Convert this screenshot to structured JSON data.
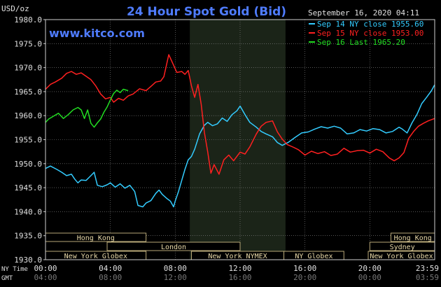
{
  "chart_data": {
    "type": "line",
    "title": "24 Hour Spot Gold (Bid)",
    "watermark": "www.kitco.com",
    "ylabel": "USD/oz",
    "timestamp": "September 16, 2020 04:11",
    "ylim": [
      1930,
      1980
    ],
    "yticks": [
      "1930.0",
      "1935.0",
      "1940.0",
      "1945.0",
      "1950.0",
      "1955.0",
      "1960.0",
      "1965.0",
      "1970.0",
      "1975.0",
      "1980.0"
    ],
    "x_axis_ny_label": "NY Time",
    "x_axis_gmt_label": "GMT",
    "xticks_ny": [
      "00:00",
      "04:00",
      "08:00",
      "12:00",
      "16:00",
      "20:00",
      "23:59"
    ],
    "xticks_gmt": [
      "04:00",
      "08:00",
      "12:00",
      "16:00",
      "20:00",
      "00:00",
      "03:59"
    ],
    "xticks_hours": [
      0,
      4,
      8,
      12,
      16,
      20,
      24
    ],
    "highlight_hours": [
      8.9,
      14.8
    ],
    "legend": [
      {
        "label": "Sep 14 NY close 1955.60",
        "color": "#33ccff"
      },
      {
        "label": "Sep 15 NY close 1953.00",
        "color": "#ff2020"
      },
      {
        "label": "Sep 16 Last 1965.20",
        "color": "#22dd22"
      }
    ],
    "sessions": [
      {
        "label": "Hong Kong",
        "start": 0,
        "end": 6.2,
        "row": 0
      },
      {
        "label": "Hong Kong",
        "start": 21.3,
        "end": 24,
        "row": 0
      },
      {
        "label": "London",
        "start": 3.8,
        "end": 12.0,
        "row": 1
      },
      {
        "label": "Sydney",
        "start": 20.0,
        "end": 24,
        "row": 1
      },
      {
        "label": "New York Globex",
        "start": 0,
        "end": 6.2,
        "row": 2
      },
      {
        "label": "New York NYMEX",
        "start": 9.0,
        "end": 14.7,
        "row": 2
      },
      {
        "label": "NY Globex",
        "start": 14.7,
        "end": 18.4,
        "row": 2
      },
      {
        "label": "New York Globex",
        "start": 19.9,
        "end": 24,
        "row": 2
      }
    ],
    "series": [
      {
        "name": "Sep 14",
        "color": "#33ccff",
        "x": [
          0,
          0.3,
          0.7,
          1,
          1.3,
          1.6,
          1.8,
          2,
          2.2,
          2.5,
          2.8,
          3,
          3.2,
          3.5,
          3.8,
          4,
          4.3,
          4.6,
          4.9,
          5.2,
          5.5,
          5.7,
          6,
          6.2,
          6.5,
          6.8,
          7,
          7.2,
          7.5,
          7.7,
          7.9,
          8,
          8.2,
          8.4,
          8.6,
          8.8,
          9,
          9.2,
          9.5,
          9.8,
          10,
          10.3,
          10.6,
          10.9,
          11.2,
          11.5,
          11.8,
          12,
          12.3,
          12.6,
          13,
          13.3,
          13.6,
          14,
          14.3,
          14.6,
          15,
          15.4,
          15.8,
          16.2,
          16.6,
          17,
          17.4,
          17.8,
          18.2,
          18.6,
          19,
          19.4,
          19.8,
          20.2,
          20.6,
          21,
          21.4,
          21.8,
          22,
          22.3,
          22.6,
          22.9,
          23.2,
          23.5,
          23.8,
          23.99
        ],
        "y": [
          1949,
          1949.5,
          1948.8,
          1948.2,
          1947.5,
          1947.8,
          1946.8,
          1946,
          1946.6,
          1946.5,
          1947.5,
          1948.2,
          1945.5,
          1945.2,
          1945.6,
          1946,
          1945.1,
          1945.8,
          1944.9,
          1945.5,
          1944.2,
          1941.3,
          1941,
          1941.8,
          1942.3,
          1943.8,
          1944.5,
          1943.6,
          1942.7,
          1942.2,
          1941,
          1942.2,
          1944.2,
          1946.5,
          1948.8,
          1950.8,
          1951.5,
          1953,
          1956.2,
          1958,
          1958.6,
          1957.9,
          1958.3,
          1959.5,
          1958.8,
          1960.2,
          1961,
          1962,
          1960.2,
          1958.6,
          1957.6,
          1956.7,
          1956.2,
          1955.6,
          1954.4,
          1953.8,
          1954.5,
          1955.5,
          1956.4,
          1956.6,
          1957.2,
          1957.7,
          1957.4,
          1957.8,
          1957.4,
          1956.2,
          1956.4,
          1957.1,
          1956.8,
          1957.3,
          1957.1,
          1956.4,
          1956.7,
          1957.6,
          1957.2,
          1956.4,
          1958.5,
          1960.2,
          1962.5,
          1963.8,
          1965.2,
          1966.4
        ]
      },
      {
        "name": "Sep 15",
        "color": "#ff2020",
        "x": [
          0,
          0.3,
          0.6,
          1,
          1.3,
          1.6,
          1.9,
          2.2,
          2.5,
          2.8,
          3.1,
          3.4,
          3.7,
          4,
          4.2,
          4.5,
          4.8,
          5.1,
          5.4,
          5.8,
          6.2,
          6.5,
          6.8,
          7.1,
          7.3,
          7.6,
          7.9,
          8.1,
          8.4,
          8.6,
          8.8,
          9,
          9.2,
          9.4,
          9.6,
          9.8,
          10,
          10.2,
          10.4,
          10.7,
          11,
          11.3,
          11.6,
          12,
          12.3,
          12.6,
          13,
          13.3,
          13.6,
          14,
          14.3,
          14.6,
          14.9,
          15.3,
          15.6,
          16,
          16.4,
          16.8,
          17.2,
          17.6,
          18,
          18.4,
          18.8,
          19.2,
          19.6,
          20,
          20.4,
          20.8,
          21.2,
          21.5,
          21.8,
          22.1,
          22.4,
          22.7,
          23,
          23.3,
          23.6,
          23.99
        ],
        "y": [
          1965.5,
          1966.5,
          1967,
          1967.8,
          1968.8,
          1969.2,
          1968.6,
          1968.9,
          1968.2,
          1967.5,
          1966.2,
          1964.5,
          1963.5,
          1963.8,
          1962.8,
          1963.6,
          1963.2,
          1964.1,
          1964.5,
          1965.6,
          1965.2,
          1966.1,
          1967,
          1967.2,
          1968.1,
          1972.7,
          1970.5,
          1969,
          1969.2,
          1968.6,
          1969.4,
          1966.2,
          1963.8,
          1966.5,
          1962.4,
          1956.5,
          1952.5,
          1948,
          1949.8,
          1947.8,
          1950.8,
          1951.8,
          1950.6,
          1952.4,
          1952,
          1953.5,
          1956.2,
          1957.8,
          1958.6,
          1958.9,
          1956.6,
          1955.1,
          1954,
          1953.4,
          1952.9,
          1951.8,
          1952.6,
          1952.1,
          1952.5,
          1951.7,
          1952,
          1953.2,
          1952.4,
          1952.7,
          1952.8,
          1952.2,
          1953,
          1952.5,
          1951.2,
          1950.6,
          1951.2,
          1952.3,
          1955.3,
          1956.7,
          1957.8,
          1958.4,
          1958.9,
          1959.4
        ]
      },
      {
        "name": "Sep 16",
        "color": "#22dd22",
        "x": [
          0,
          0.2,
          0.5,
          0.8,
          1.1,
          1.4,
          1.7,
          2,
          2.2,
          2.4,
          2.6,
          2.8,
          3,
          3.2,
          3.4,
          3.6,
          3.8,
          4,
          4.2,
          4.4,
          4.6,
          4.8,
          5.1
        ],
        "y": [
          1958.6,
          1959.3,
          1959.9,
          1960.5,
          1959.4,
          1960.2,
          1961.2,
          1961.7,
          1961.2,
          1959.4,
          1961.2,
          1958.4,
          1957.6,
          1958.5,
          1959.3,
          1960.7,
          1961.8,
          1963.3,
          1964.6,
          1965.3,
          1964.8,
          1965.5,
          1965.2
        ]
      }
    ]
  }
}
